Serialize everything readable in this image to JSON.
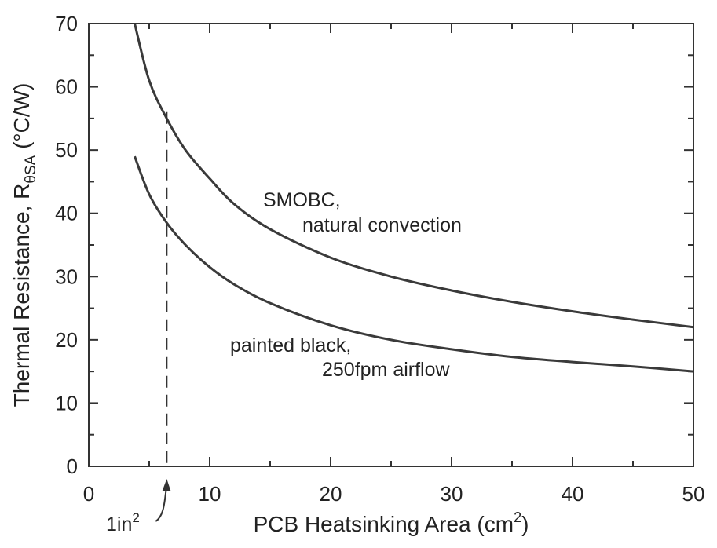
{
  "chart_data": {
    "type": "line",
    "xlabel": "PCB Heatsinking Area (cm",
    "xlabel_sup": "2",
    "xlabel_end": ")",
    "ylabel": "Thermal Resistance, R",
    "ylabel_sub": "θSA",
    "ylabel_end": " (°C/W)",
    "xlim": [
      0,
      50
    ],
    "ylim": [
      0,
      70
    ],
    "xticks": [
      0,
      10,
      20,
      30,
      40,
      50
    ],
    "yticks": [
      0,
      10,
      20,
      30,
      40,
      50,
      60,
      70
    ],
    "grid": false,
    "series": [
      {
        "x": [
          3.8,
          5,
          6.45,
          8,
          10,
          12,
          15,
          20,
          25,
          30,
          35,
          40,
          45,
          50
        ],
        "y": [
          70,
          61,
          55,
          50,
          45.5,
          41.5,
          37.5,
          33,
          30,
          27.8,
          26,
          24.5,
          23.2,
          22
        ]
      },
      {
        "x": [
          3.8,
          5,
          6.45,
          8,
          10,
          12,
          15,
          20,
          25,
          30,
          35,
          40,
          45,
          50
        ],
        "y": [
          49,
          43,
          38.5,
          35,
          31.5,
          28.8,
          25.8,
          22.3,
          20,
          18.5,
          17.3,
          16.5,
          15.8,
          15
        ]
      }
    ],
    "annotations": {
      "curve1_line1": "SMOBC,",
      "curve1_line2": "natural convection",
      "curve2_line1": "painted black,",
      "curve2_line2": "250fpm airflow",
      "marker_label": "1in",
      "marker_label_sup": "2",
      "marker_x": 6.45
    }
  }
}
